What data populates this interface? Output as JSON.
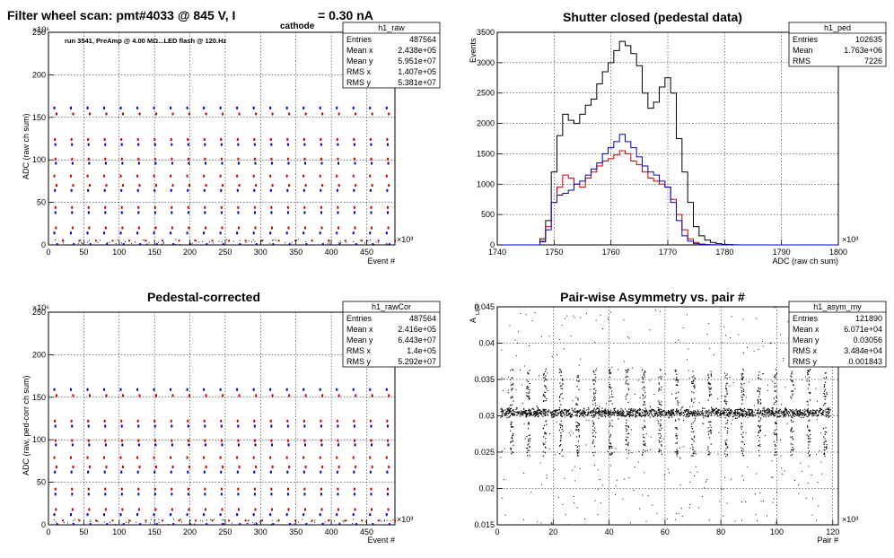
{
  "chart_data": [
    {
      "id": "raw",
      "type": "scatter",
      "title": "Filter wheel scan: pmt#4033 @   845 V, I",
      "title_sub": "cathode",
      "title_suffix": "= 0.30 nA",
      "annotation": "run 3541, PreAmp @ 4.00 MΩ...LED flash @  120.Hz",
      "xlabel": "Event #",
      "ylabel": "ADC (raw ch sum)",
      "x_exponent": "×10³",
      "y_exponent": "×10⁶",
      "xlim": [
        0,
        490
      ],
      "ylim": [
        0,
        250
      ],
      "xticks": [
        0,
        50,
        100,
        150,
        200,
        250,
        300,
        350,
        400,
        450
      ],
      "yticks": [
        0,
        50,
        100,
        150,
        200,
        250
      ],
      "grid": true,
      "series_colors": [
        "#0000cc",
        "#cc0000",
        "#000000"
      ],
      "period": 23.5,
      "steps": [
        {
          "level": 14,
          "color": "#0000cc"
        },
        {
          "level": 20,
          "color": "#cc0000"
        },
        {
          "level": 38,
          "color": "#0000cc"
        },
        {
          "level": 44,
          "color": "#cc0000"
        },
        {
          "level": 64,
          "color": "#0000cc"
        },
        {
          "level": 70,
          "color": "#cc0000"
        },
        {
          "level": 81,
          "color": "#cc0000"
        },
        {
          "level": 96,
          "color": "#0000cc"
        },
        {
          "level": 101,
          "color": "#cc0000"
        },
        {
          "level": 118,
          "color": "#0000cc"
        },
        {
          "level": 124,
          "color": "#cc0000"
        },
        {
          "level": 154,
          "color": "#cc0000"
        },
        {
          "level": 161,
          "color": "#0000cc"
        }
      ],
      "stats": {
        "name": "h1_raw",
        "rows": [
          [
            "Entries",
            "487564"
          ],
          [
            "Mean x",
            "2.438e+05"
          ],
          [
            "Mean y",
            "5.951e+07"
          ],
          [
            "RMS x",
            "1.407e+05"
          ],
          [
            "RMS y",
            "5.381e+07"
          ]
        ]
      }
    },
    {
      "id": "ped",
      "type": "line",
      "title": "Shutter closed (pedestal data)",
      "xlabel": "ADC (raw ch sum)",
      "ylabel": "Events",
      "x_exponent": "×10³",
      "xlim": [
        1740,
        1800
      ],
      "ylim": [
        0,
        3500
      ],
      "xticks": [
        1740,
        1750,
        1760,
        1770,
        1780,
        1790,
        1800
      ],
      "yticks": [
        0,
        500,
        1000,
        1500,
        2000,
        2500,
        3000,
        3500
      ],
      "grid": true,
      "series": [
        {
          "color": "#000000",
          "x": [
            1747,
            1748,
            1749,
            1750,
            1751,
            1752,
            1753,
            1754,
            1755,
            1756,
            1757,
            1758,
            1759,
            1760,
            1761,
            1762,
            1763,
            1764,
            1765,
            1766,
            1767,
            1768,
            1769,
            1770,
            1771,
            1772,
            1773,
            1774,
            1775,
            1776,
            1777,
            1778,
            1779,
            1780,
            1781,
            1782,
            1783
          ],
          "values": [
            0,
            100,
            400,
            1200,
            1800,
            2150,
            2050,
            2000,
            2150,
            2300,
            2400,
            2650,
            2850,
            3000,
            3200,
            3350,
            3280,
            3150,
            2950,
            2500,
            2250,
            2350,
            2600,
            2750,
            2500,
            1750,
            1200,
            700,
            300,
            150,
            80,
            40,
            20,
            10,
            5,
            2,
            0
          ]
        },
        {
          "color": "#cc0000",
          "x": [
            1747,
            1748,
            1749,
            1750,
            1751,
            1752,
            1753,
            1754,
            1755,
            1756,
            1757,
            1758,
            1759,
            1760,
            1761,
            1762,
            1763,
            1764,
            1765,
            1766,
            1767,
            1768,
            1769,
            1770,
            1771,
            1772,
            1773,
            1774,
            1775,
            1776,
            1777,
            1778,
            1779,
            1780,
            1781,
            1782,
            1783
          ],
          "values": [
            0,
            60,
            300,
            700,
            950,
            1150,
            1100,
            1000,
            950,
            1100,
            1200,
            1300,
            1380,
            1420,
            1480,
            1550,
            1500,
            1380,
            1320,
            1200,
            1100,
            1050,
            1000,
            950,
            750,
            500,
            250,
            100,
            40,
            15,
            5,
            2,
            0,
            0,
            0,
            0,
            0
          ]
        },
        {
          "color": "#0000cc",
          "x": [
            1747,
            1748,
            1749,
            1750,
            1751,
            1752,
            1753,
            1754,
            1755,
            1756,
            1757,
            1758,
            1759,
            1760,
            1761,
            1762,
            1763,
            1764,
            1765,
            1766,
            1767,
            1768,
            1769,
            1770,
            1771,
            1772,
            1773,
            1774,
            1775,
            1776,
            1777,
            1778,
            1779,
            1780,
            1781,
            1782,
            1783
          ],
          "values": [
            0,
            50,
            250,
            700,
            820,
            850,
            900,
            1000,
            1050,
            1150,
            1250,
            1350,
            1500,
            1600,
            1700,
            1820,
            1700,
            1600,
            1450,
            1300,
            1200,
            1150,
            1050,
            950,
            700,
            400,
            150,
            60,
            20,
            8,
            3,
            1,
            0,
            0,
            0,
            0,
            0
          ]
        }
      ],
      "stats": {
        "name": "h1_ped",
        "rows": [
          [
            "Entries",
            "102635"
          ],
          [
            "Mean",
            "1.763e+06"
          ],
          [
            "RMS",
            "7226"
          ]
        ]
      }
    },
    {
      "id": "rawcor",
      "type": "scatter",
      "title": "Pedestal-corrected",
      "xlabel": "Event #",
      "ylabel": "ADC (raw, ped-corr ch sum)",
      "x_exponent": "×10³",
      "y_exponent": "×10⁶",
      "xlim": [
        0,
        490
      ],
      "ylim": [
        0,
        250
      ],
      "xticks": [
        0,
        50,
        100,
        150,
        200,
        250,
        300,
        350,
        400,
        450
      ],
      "yticks": [
        0,
        50,
        100,
        150,
        200,
        250
      ],
      "grid": true,
      "period": 23.5,
      "steps": [
        {
          "level": 12,
          "color": "#0000cc"
        },
        {
          "level": 18,
          "color": "#cc0000"
        },
        {
          "level": 36,
          "color": "#0000cc"
        },
        {
          "level": 42,
          "color": "#cc0000"
        },
        {
          "level": 62,
          "color": "#0000cc"
        },
        {
          "level": 68,
          "color": "#cc0000"
        },
        {
          "level": 79,
          "color": "#cc0000"
        },
        {
          "level": 94,
          "color": "#0000cc"
        },
        {
          "level": 99,
          "color": "#cc0000"
        },
        {
          "level": 116,
          "color": "#0000cc"
        },
        {
          "level": 122,
          "color": "#cc0000"
        },
        {
          "level": 152,
          "color": "#cc0000"
        },
        {
          "level": 159,
          "color": "#0000cc"
        }
      ],
      "stats": {
        "name": "h1_rawCor",
        "rows": [
          [
            "Entries",
            "487564"
          ],
          [
            "Mean x",
            "2.416e+05"
          ],
          [
            "Mean y",
            "6.443e+07"
          ],
          [
            "RMS x",
            "1.4e+05"
          ],
          [
            "RMS y",
            "5.292e+07"
          ]
        ]
      }
    },
    {
      "id": "asym",
      "type": "scatter",
      "title": "Pair-wise Asymmetry vs. pair #",
      "xlabel": "Pair #",
      "ylabel": "A",
      "ylabel_sub": "LED",
      "x_exponent": "×10³",
      "xlim": [
        0,
        122
      ],
      "ylim": [
        0.015,
        0.045
      ],
      "xticks": [
        0,
        20,
        40,
        60,
        80,
        100,
        120
      ],
      "yticks": [
        0.015,
        0.02,
        0.025,
        0.03,
        0.035,
        0.04,
        0.045
      ],
      "ytick_labels": [
        "0.015",
        "0.02",
        "0.025",
        "0.03",
        "0.035",
        "0.04",
        "0.045"
      ],
      "grid": true,
      "band_center": 0.0305,
      "spike_period": 5.9,
      "stats": {
        "name": "h1_asym_my",
        "rows": [
          [
            "Entries",
            "121890"
          ],
          [
            "Mean x",
            "6.071e+04"
          ],
          [
            "Mean y",
            "0.03056"
          ],
          [
            "RMS x",
            "3.484e+04"
          ],
          [
            "RMS y",
            "0.001843"
          ]
        ]
      }
    }
  ]
}
